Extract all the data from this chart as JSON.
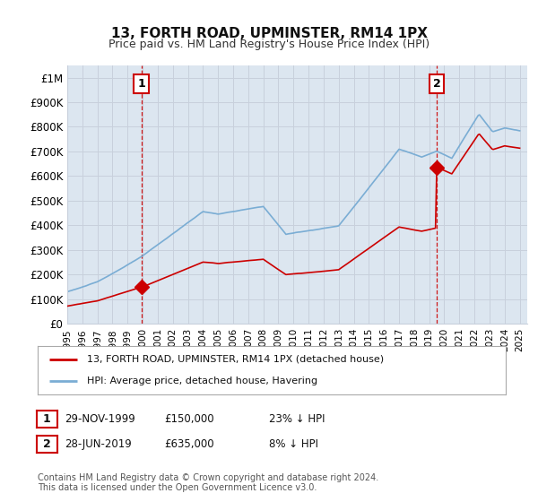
{
  "title": "13, FORTH ROAD, UPMINSTER, RM14 1PX",
  "subtitle": "Price paid vs. HM Land Registry's House Price Index (HPI)",
  "transaction1": {
    "date": "29-NOV-1999",
    "price": 150000,
    "label": "1",
    "pct": "23% ↓ HPI",
    "year": 1999.91
  },
  "transaction2": {
    "date": "28-JUN-2019",
    "price": 635000,
    "label": "2",
    "pct": "8% ↓ HPI",
    "year": 2019.49
  },
  "legend_line1": "13, FORTH ROAD, UPMINSTER, RM14 1PX (detached house)",
  "legend_line2": "HPI: Average price, detached house, Havering",
  "footnote": "Contains HM Land Registry data © Crown copyright and database right 2024.\nThis data is licensed under the Open Government Licence v3.0.",
  "hpi_color": "#7aadd4",
  "price_color": "#cc0000",
  "grid_color": "#c8d0dc",
  "bg_color": "#e8eef5",
  "plot_bg": "#dce6f0",
  "background_color": "#ffffff",
  "xlim": [
    1995,
    2025.5
  ],
  "ylim": [
    0,
    1050000
  ],
  "yticks": [
    0,
    100000,
    200000,
    300000,
    400000,
    500000,
    600000,
    700000,
    800000,
    900000,
    1000000
  ],
  "ytick_labels": [
    "£0",
    "£100K",
    "£200K",
    "£300K",
    "£400K",
    "£500K",
    "£600K",
    "£700K",
    "£800K",
    "£900K",
    "£1M"
  ],
  "xticks": [
    1995,
    1996,
    1997,
    1998,
    1999,
    2000,
    2001,
    2002,
    2003,
    2004,
    2005,
    2006,
    2007,
    2008,
    2009,
    2010,
    2011,
    2012,
    2013,
    2014,
    2015,
    2016,
    2017,
    2018,
    2019,
    2020,
    2021,
    2022,
    2023,
    2024,
    2025
  ]
}
